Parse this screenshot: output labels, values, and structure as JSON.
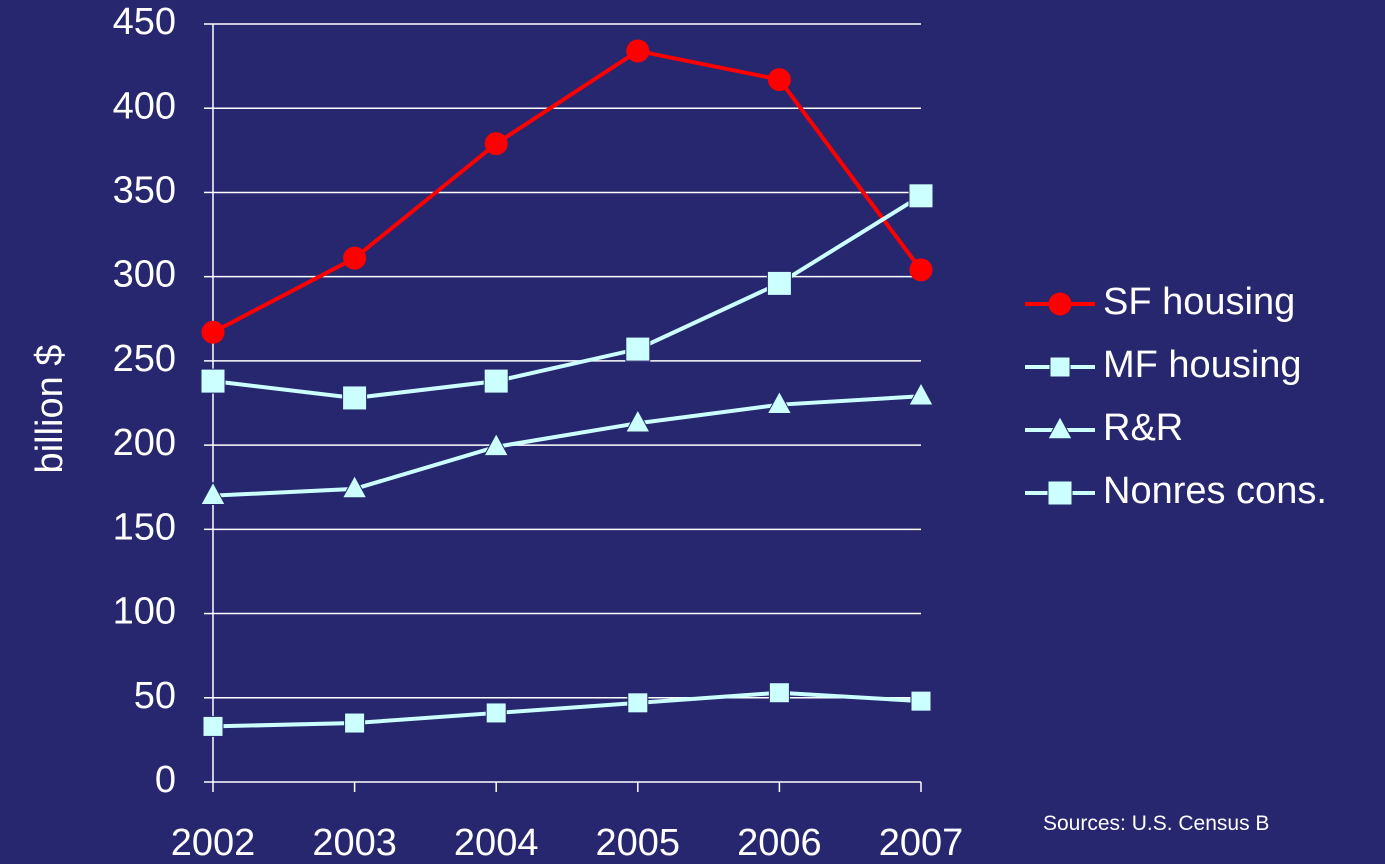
{
  "chart_data": {
    "type": "line",
    "title": "",
    "xlabel": "",
    "ylabel": "billion $",
    "x": [
      "2002",
      "2003",
      "2004",
      "2005",
      "2006",
      "2007"
    ],
    "ylim": [
      0,
      450
    ],
    "yticks": [
      "0",
      "50",
      "100",
      "150",
      "200",
      "250",
      "300",
      "350",
      "400",
      "450"
    ],
    "grid": true,
    "legend_position": "right",
    "series": [
      {
        "name": "SF housing",
        "values": [
          267,
          311,
          379,
          434,
          417,
          304
        ],
        "color": "#ff0000",
        "marker": "circle"
      },
      {
        "name": "MF housing",
        "values": [
          33,
          35,
          41,
          47,
          53,
          48
        ],
        "color": "#ccffff",
        "marker": "square"
      },
      {
        "name": "R&R",
        "values": [
          170,
          174,
          199,
          213,
          224,
          229
        ],
        "color": "#ccffff",
        "marker": "triangle"
      },
      {
        "name": "Nonres cons.",
        "values": [
          238,
          228,
          238,
          257,
          296,
          348
        ],
        "color": "#ccffff",
        "marker": "square-large"
      }
    ],
    "source_note": "Sources:  U.S. Census B"
  },
  "colors": {
    "background": "#27276f",
    "grid": "#ffffff",
    "text": "#ffffff"
  }
}
